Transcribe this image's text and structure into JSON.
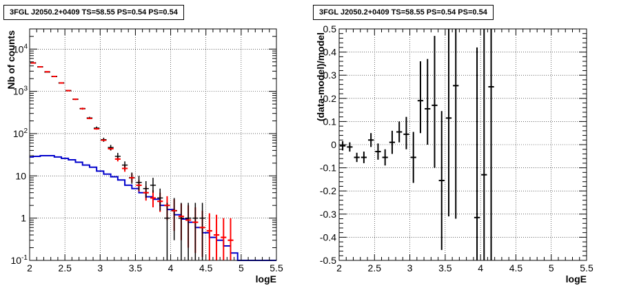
{
  "chart_data": [
    {
      "type": "histogram-log",
      "title": "3FGL J2050.2+0409 TS=58.55 PS=0.54 PS=0.54",
      "xlabel": "logE",
      "ylabel": "Nb of counts",
      "xlim": [
        2,
        5.5
      ],
      "ylim": [
        0.1,
        30000
      ],
      "y_scale": "log",
      "grid": true,
      "x_ticks": [
        "2",
        "2.5",
        "3",
        "3.5",
        "4",
        "4.5",
        "5",
        "5.5"
      ],
      "y_ticks": [
        {
          "v": 0.1,
          "label": "10",
          "exp": "-1"
        },
        {
          "v": 1,
          "label": "1",
          "exp": ""
        },
        {
          "v": 10,
          "label": "10",
          "exp": ""
        },
        {
          "v": 100,
          "label": "10",
          "exp": "2"
        },
        {
          "v": 1000,
          "label": "10",
          "exp": "3"
        },
        {
          "v": 10000,
          "label": "10",
          "exp": "4"
        }
      ],
      "bin_width": 0.1,
      "data_counts": {
        "name": "data",
        "color": "#000000",
        "x": [
          2.05,
          2.15,
          2.25,
          2.35,
          2.45,
          2.55,
          2.65,
          2.75,
          2.85,
          2.95,
          3.05,
          3.15,
          3.25,
          3.35,
          3.45,
          3.55,
          3.65,
          3.75,
          3.85,
          3.95,
          4.05,
          4.15,
          4.25,
          4.35,
          4.45
        ],
        "y": [
          4700,
          3800,
          2850,
          2250,
          1580,
          1040,
          650,
          390,
          235,
          135,
          72,
          47,
          29,
          18,
          9,
          7,
          5,
          6,
          3,
          1,
          1.5,
          1,
          1,
          1,
          1
        ],
        "lo": [
          4630,
          3740,
          2800,
          2200,
          1540,
          1010,
          625,
          370,
          220,
          125,
          64,
          40,
          24,
          14,
          6.5,
          4.5,
          3,
          4,
          1.5,
          0.1,
          0.3,
          0.1,
          0.1,
          0.1,
          0.1
        ],
        "hi": [
          4770,
          3860,
          2900,
          2300,
          1620,
          1070,
          675,
          410,
          250,
          147,
          80,
          54,
          35,
          22,
          12,
          10,
          7.5,
          9,
          5,
          2.3,
          3,
          2.3,
          2.3,
          2.3,
          2.3
        ]
      },
      "model_total": {
        "name": "model",
        "color": "#ff0000",
        "x": [
          2.05,
          2.15,
          2.25,
          2.35,
          2.45,
          2.55,
          2.65,
          2.75,
          2.85,
          2.95,
          3.05,
          3.15,
          3.25,
          3.35,
          3.45,
          3.55,
          3.65,
          3.75,
          3.85,
          3.95,
          4.05,
          4.15,
          4.25,
          4.35,
          4.45,
          4.55,
          4.65,
          4.75,
          4.85
        ],
        "y": [
          4700,
          3800,
          2900,
          2250,
          1580,
          1040,
          650,
          390,
          230,
          130,
          70,
          44,
          25,
          15,
          9,
          6,
          4,
          3,
          2.5,
          2,
          1.5,
          1.1,
          0.9,
          0.8,
          0.6,
          0.5,
          0.4,
          0.35,
          0.3
        ],
        "lo": [
          4650,
          3760,
          2860,
          2220,
          1555,
          1020,
          635,
          378,
          222,
          124,
          66,
          40,
          22,
          12.5,
          7,
          4.3,
          2.6,
          1.8,
          1.4,
          0.9,
          0.5,
          0.3,
          0.2,
          0.15,
          0.12,
          0.1,
          0.1,
          0.1,
          0.1
        ],
        "hi": [
          4750,
          3840,
          2940,
          2280,
          1605,
          1060,
          665,
          402,
          238,
          136,
          74,
          48,
          28,
          18,
          11.5,
          8,
          5.7,
          4.6,
          4,
          3.3,
          2.8,
          2.2,
          2,
          1.8,
          1.5,
          1.3,
          1.2,
          1,
          1
        ]
      },
      "source_model": {
        "name": "source",
        "color": "#0000cc",
        "bins": [
          [
            1.95,
            2.05,
            28
          ],
          [
            2.05,
            2.15,
            29
          ],
          [
            2.15,
            2.25,
            30
          ],
          [
            2.25,
            2.35,
            30
          ],
          [
            2.35,
            2.45,
            28
          ],
          [
            2.45,
            2.55,
            26
          ],
          [
            2.55,
            2.65,
            24
          ],
          [
            2.65,
            2.75,
            21
          ],
          [
            2.75,
            2.85,
            18
          ],
          [
            2.85,
            2.95,
            16
          ],
          [
            2.95,
            3.05,
            13
          ],
          [
            3.05,
            3.15,
            11
          ],
          [
            3.15,
            3.25,
            9.5
          ],
          [
            3.25,
            3.35,
            8
          ],
          [
            3.35,
            3.45,
            6
          ],
          [
            3.45,
            3.55,
            5
          ],
          [
            3.55,
            3.65,
            4
          ],
          [
            3.65,
            3.75,
            3.2
          ],
          [
            3.75,
            3.85,
            2.8
          ],
          [
            3.85,
            3.95,
            2
          ],
          [
            3.95,
            4.05,
            1.6
          ],
          [
            4.05,
            4.15,
            1.2
          ],
          [
            4.15,
            4.25,
            0.95
          ],
          [
            4.25,
            4.35,
            0.8
          ],
          [
            4.35,
            4.45,
            0.6
          ],
          [
            4.45,
            4.55,
            0.45
          ],
          [
            4.55,
            4.65,
            0.35
          ],
          [
            4.65,
            4.75,
            0.3
          ],
          [
            4.75,
            4.85,
            0.22
          ],
          [
            4.85,
            4.95,
            0.15
          ],
          [
            4.95,
            5.05,
            0.1
          ],
          [
            5.05,
            5.5,
            0.1
          ]
        ]
      }
    },
    {
      "type": "scatter-errorbars",
      "title": "3FGL J2050.2+0409 TS=58.55 PS=0.54 PS=0.54",
      "xlabel": "logE",
      "ylabel": "(data-model)/model",
      "xlim": [
        2,
        5.5
      ],
      "ylim": [
        -0.5,
        0.5
      ],
      "grid": true,
      "x_ticks": [
        "2",
        "2.5",
        "3",
        "3.5",
        "4",
        "4.5",
        "5",
        "5.5"
      ],
      "y_ticks": [
        "-0.5",
        "-0.4",
        "-0.3",
        "-0.2",
        "-0.1",
        "0",
        "0.1",
        "0.2",
        "0.3",
        "0.4",
        "0.5"
      ],
      "residuals": {
        "name": "residuals",
        "color": "#000000",
        "x": [
          2.05,
          2.15,
          2.25,
          2.35,
          2.45,
          2.55,
          2.65,
          2.75,
          2.85,
          2.95,
          3.05,
          3.15,
          3.25,
          3.35,
          3.45,
          3.55,
          3.65,
          3.95,
          4.05,
          4.15
        ],
        "y": [
          -0.005,
          -0.01,
          -0.055,
          -0.055,
          0.02,
          -0.03,
          -0.055,
          0.01,
          0.055,
          0.045,
          -0.055,
          0.19,
          0.155,
          0.17,
          -0.155,
          0.115,
          0.255,
          -0.315,
          -0.13,
          0.25
        ],
        "lo": [
          -0.025,
          -0.03,
          -0.075,
          -0.08,
          -0.01,
          -0.065,
          -0.09,
          -0.04,
          0.01,
          -0.02,
          -0.165,
          0.05,
          0.0,
          -0.1,
          -0.455,
          -0.31,
          -0.32,
          -0.5,
          -0.5,
          -0.5
        ],
        "hi": [
          0.015,
          0.01,
          -0.035,
          -0.03,
          0.05,
          0.005,
          -0.02,
          0.06,
          0.1,
          0.12,
          0.055,
          0.36,
          0.37,
          0.47,
          0.145,
          0.5,
          0.5,
          0.42,
          0.5,
          0.5
        ]
      }
    }
  ]
}
